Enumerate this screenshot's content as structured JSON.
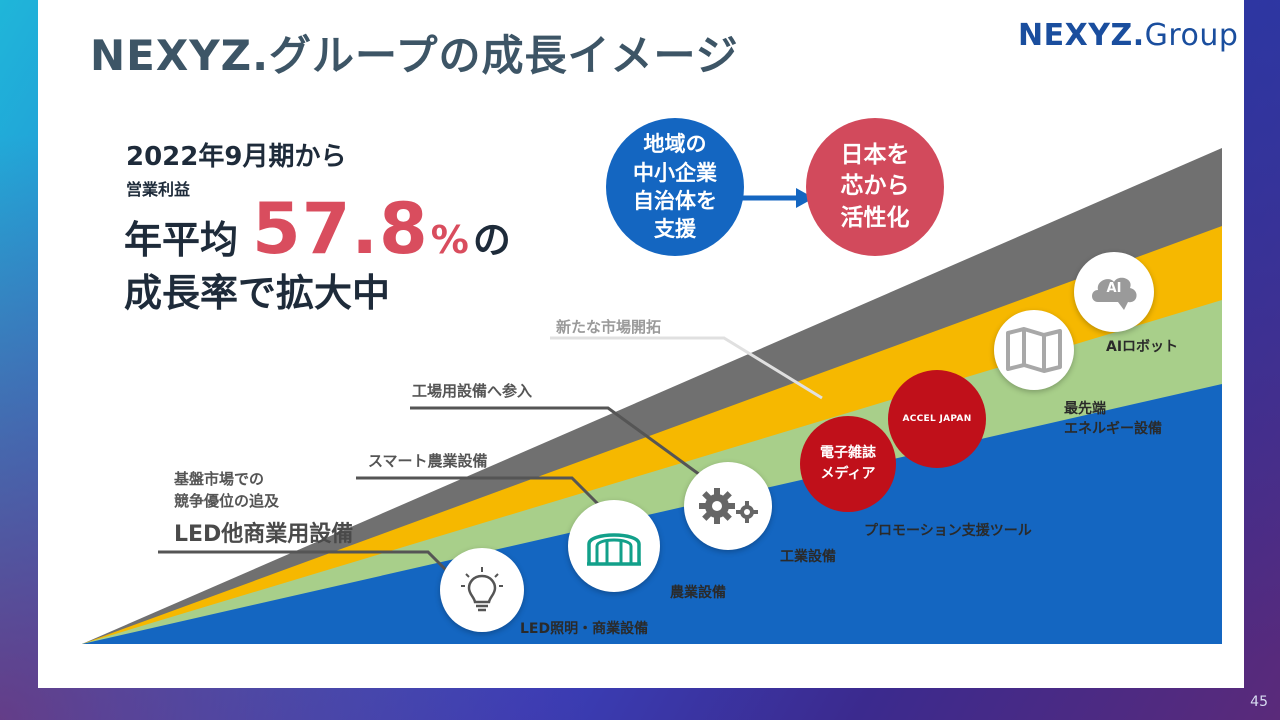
{
  "title": "NEXYZ.グループの成長イメージ",
  "logo": {
    "main": "NEXYZ",
    "dot": ".",
    "sub": "Group"
  },
  "headline": {
    "period": "2022年9月期から",
    "metric_label": "営業利益",
    "prefix": "年平均",
    "value": "57.8",
    "unit": "%",
    "suffix": "の",
    "line2": "成長率で拡大中"
  },
  "circles": {
    "left": "地域の\n中小企業\n自治体を\n支援",
    "right": "日本を\n芯から\n活性化"
  },
  "labels": {
    "new_market": "新たな市場開拓",
    "industrial_entry": "工場用設備へ参入",
    "smart_agri": "スマート農業設備",
    "base_market_1": "基盤市場での",
    "base_market_2": "競争優位の追及",
    "led_commercial": "LED他商業用設備",
    "led_lighting": "LED照明・商業設備",
    "agri_equipment": "農業設備",
    "industrial_equipment": "工業設備",
    "promotion_tool": "プロモーション支援ツール",
    "cutting_edge_1": "最先端",
    "cutting_edge_2": "エネルギー設備",
    "ai_robot": "AIロボット",
    "magazine_1": "電子雑誌",
    "magazine_2": "メディア",
    "accel_japan": "ACCEL JAPAN",
    "ai_icon_text": "AI"
  },
  "colors": {
    "blue": "#1466c1",
    "green": "#a8cf8a",
    "yellow": "#f6b800",
    "gray": "#707070",
    "red": "#d24a5c",
    "dark_red": "#c0101a"
  },
  "page_number": "45"
}
